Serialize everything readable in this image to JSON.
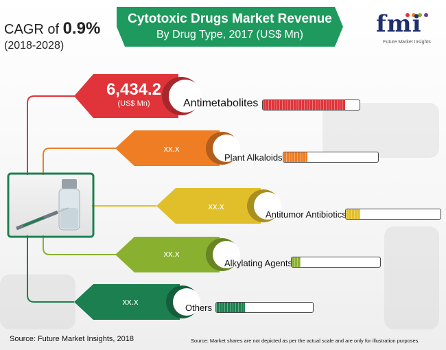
{
  "cagr": {
    "prefix": "CAGR of ",
    "value": "0.9%",
    "period": "(2018-2028)"
  },
  "title": {
    "line1": "Cytotoxic Drugs Market Revenue",
    "line2": "By Drug Type, 2017 (US$ Mn)"
  },
  "logo": {
    "mark": "fmi",
    "tagline": "Future Market Insights"
  },
  "colors": {
    "banner": "#1f9a5f",
    "antimetabolites": "#e0343a",
    "plant_alkaloids": "#ee7d24",
    "antitumor_antibiotics": "#e1bf2a",
    "alkylating_agents": "#8ab02f",
    "others": "#1b7f4f"
  },
  "chart_data": {
    "type": "bar",
    "title": "Cytotoxic Drugs Market Revenue By Drug Type, 2017 (US$ Mn)",
    "categories": [
      "Antimetabolites",
      "Plant Alkaloids",
      "Antitumor Antibiotics",
      "Alkylating Agents",
      "Others"
    ],
    "value_labels": [
      "6,434.2",
      "xx.x",
      "xx.x",
      "xx.x",
      "xx.x"
    ],
    "unit_label": "(US$ Mn)",
    "values": [
      6434.2,
      null,
      null,
      null,
      null
    ],
    "share_fill_fraction": [
      0.85,
      0.25,
      0.15,
      0.1,
      0.3
    ]
  },
  "footer": {
    "source": "Source: Future Market Insights, 2018",
    "note": "Source: Market shares are not depicted as per the actual scale and are only for illustration purposes."
  }
}
